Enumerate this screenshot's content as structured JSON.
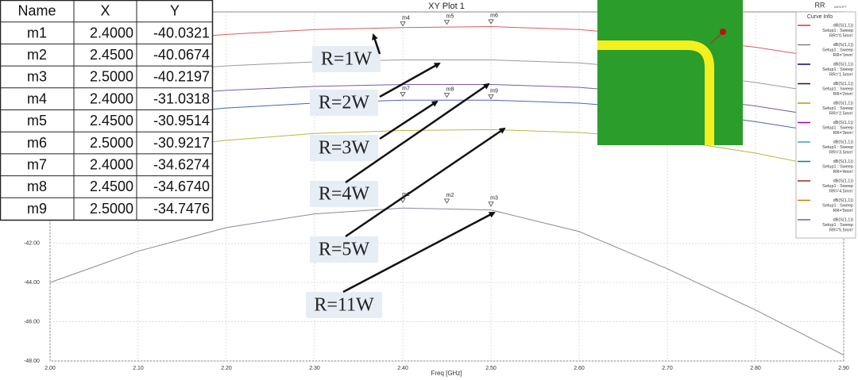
{
  "chart_data": {
    "type": "line",
    "title": "XY Plot 1",
    "x_label": "Freq [GHz]",
    "x": [
      2.0,
      2.1,
      2.2,
      2.3,
      2.4,
      2.5,
      2.6,
      2.7,
      2.8,
      2.9
    ],
    "series": [
      {
        "color": "#e05a5a",
        "values": [
          -32.2,
          -31.7,
          -31.35,
          -31.1,
          -31.0,
          -30.95,
          -31.1,
          -31.5,
          -32.0,
          -32.7
        ]
      },
      {
        "color": "#9a9a9a",
        "values": [
          -33.8,
          -33.3,
          -32.95,
          -32.75,
          -32.65,
          -32.65,
          -32.8,
          -33.2,
          -33.8,
          -34.5
        ]
      },
      {
        "color": "#7a5aa8",
        "values": [
          -35.0,
          -34.5,
          -34.2,
          -34.0,
          -33.9,
          -33.9,
          -34.05,
          -34.4,
          -35.0,
          -35.7
        ]
      },
      {
        "color": "#4a64b4",
        "values": [
          -36.0,
          -35.5,
          -35.1,
          -34.85,
          -34.7,
          -34.7,
          -34.85,
          -35.2,
          -35.8,
          -36.5
        ]
      },
      {
        "color": "#b8b840",
        "values": [
          -37.8,
          -37.2,
          -36.75,
          -36.4,
          -36.25,
          -36.2,
          -36.35,
          -36.7,
          -37.4,
          -38.3
        ]
      },
      {
        "color": "#8a8a9a",
        "values": [
          -44.0,
          -42.4,
          -41.2,
          -40.5,
          -40.2,
          -40.3,
          -41.4,
          -43.3,
          -45.4,
          -47.7
        ]
      }
    ],
    "xlim": [
      2.0,
      2.9
    ],
    "xticks": [
      {
        "value": 2.0,
        "label": "2.00"
      },
      {
        "value": 2.1,
        "label": "2.10"
      },
      {
        "value": 2.2,
        "label": "2.20"
      },
      {
        "value": 2.3,
        "label": "2.30"
      },
      {
        "value": 2.4,
        "label": "2.40"
      },
      {
        "value": 2.5,
        "label": "2.50"
      },
      {
        "value": 2.6,
        "label": "2.60"
      },
      {
        "value": 2.7,
        "label": "2.70"
      },
      {
        "value": 2.8,
        "label": "2.80"
      },
      {
        "value": 2.9,
        "label": "2.90"
      }
    ],
    "ylim": [
      -48,
      -30.2
    ],
    "yticks": [
      {
        "value": -48,
        "label": "-48.00"
      },
      {
        "value": -46,
        "label": "-46.00"
      },
      {
        "value": -44,
        "label": "-44.00"
      },
      {
        "value": -42,
        "label": "-42.00"
      }
    ],
    "grid": true
  },
  "curve_info": {
    "title": "Curve Info",
    "entries": [
      {
        "color": "#e03030",
        "lines": [
          "dB(S(1,1))",
          "Setup1 : Sweep",
          "RR='0.5mm'"
        ]
      },
      {
        "color": "#808080",
        "lines": [
          "dB(S(1,1))",
          "Setup1 : Sweep",
          "RR='1mm'"
        ]
      },
      {
        "color": "#000080",
        "lines": [
          "dB(S(1,1))",
          "Setup1 : Sweep",
          "RR='1.5mm'"
        ]
      },
      {
        "color": "#400040",
        "lines": [
          "dB(S(1,1))",
          "Setup1 : Sweep",
          "RR='2mm'"
        ]
      },
      {
        "color": "#a0a000",
        "lines": [
          "dB(S(1,1))",
          "Setup1 : Sweep",
          "RR='2.5mm'"
        ]
      },
      {
        "color": "#a000a0",
        "lines": [
          "dB(S(1,1))",
          "Setup1 : Sweep",
          "RR='3mm'"
        ]
      },
      {
        "color": "#40a0c0",
        "lines": [
          "dB(S(1,1))",
          "Setup1 : Sweep",
          "RR='3.5mm'"
        ]
      },
      {
        "color": "#008080",
        "lines": [
          "dB(S(1,1))",
          "Setup1 : Sweep",
          "RR='4mm'"
        ]
      },
      {
        "color": "#a02020",
        "lines": [
          "dB(S(1,1))",
          "Setup1 : Sweep",
          "RR='4.5mm'"
        ]
      },
      {
        "color": "#c08000",
        "lines": [
          "dB(S(1,1))",
          "Setup1 : Sweep",
          "RR='5mm'"
        ]
      },
      {
        "color": "#6060c0",
        "lines": [
          "dB(S(1,1))",
          "Setup1 : Sweep",
          "RR='5.5mm'"
        ]
      }
    ]
  },
  "logo": "RR",
  "logo_sub": "ANSOFT",
  "annotations": [
    "R=1W",
    "R=2W",
    "R=3W",
    "R=4W",
    "R=5W",
    "R=11W"
  ],
  "table": {
    "header": [
      "Name",
      "X",
      "Y"
    ],
    "rows": [
      [
        "m1",
        "2.4000",
        "-40.0321"
      ],
      [
        "m2",
        "2.4500",
        "-40.0674"
      ],
      [
        "m3",
        "2.5000",
        "-40.2197"
      ],
      [
        "m4",
        "2.4000",
        "-31.0318"
      ],
      [
        "m5",
        "2.4500",
        "-30.9514"
      ],
      [
        "m6",
        "2.5000",
        "-30.9217"
      ],
      [
        "m7",
        "2.4000",
        "-34.6274"
      ],
      [
        "m8",
        "2.4500",
        "-34.6740"
      ],
      [
        "m9",
        "2.5000",
        "-34.7476"
      ]
    ]
  }
}
